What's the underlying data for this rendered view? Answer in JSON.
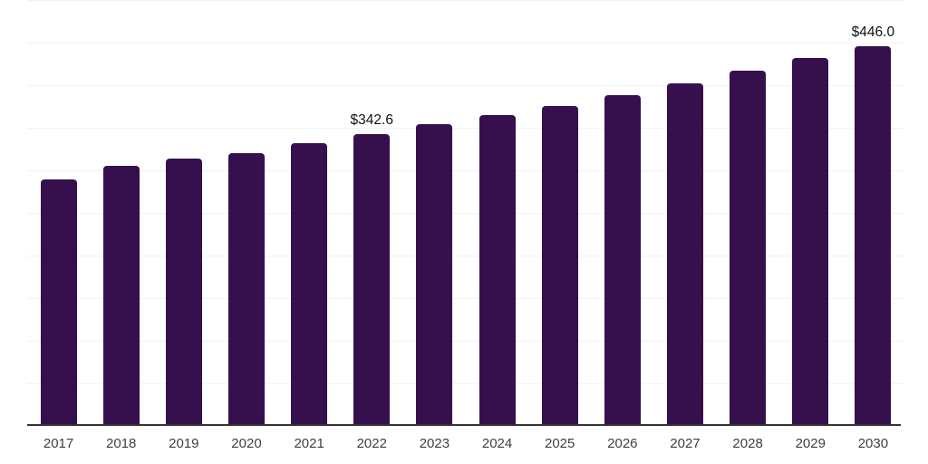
{
  "chart_data": {
    "type": "bar",
    "title": "",
    "xlabel": "",
    "ylabel": "",
    "categories": [
      "2017",
      "2018",
      "2019",
      "2020",
      "2021",
      "2022",
      "2023",
      "2024",
      "2025",
      "2026",
      "2027",
      "2028",
      "2029",
      "2030"
    ],
    "values": [
      289.4,
      305.5,
      313.8,
      320.2,
      331.9,
      342.6,
      354.3,
      364.9,
      375.5,
      388.3,
      402.1,
      417.0,
      431.9,
      446.0
    ],
    "data_labels": {
      "2022": "$342.6",
      "2030": "$446.0"
    },
    "value_prefix": "$",
    "ylim": [
      0,
      500
    ],
    "gridline_step": 50,
    "grid": true,
    "legend": "none",
    "colors": {
      "bar": "#36104d",
      "axis_line": "#333333",
      "gridline": "#f2f2f2",
      "tick_label": "#3f3f3f",
      "value_label": "#111111",
      "background": "#ffffff"
    }
  }
}
